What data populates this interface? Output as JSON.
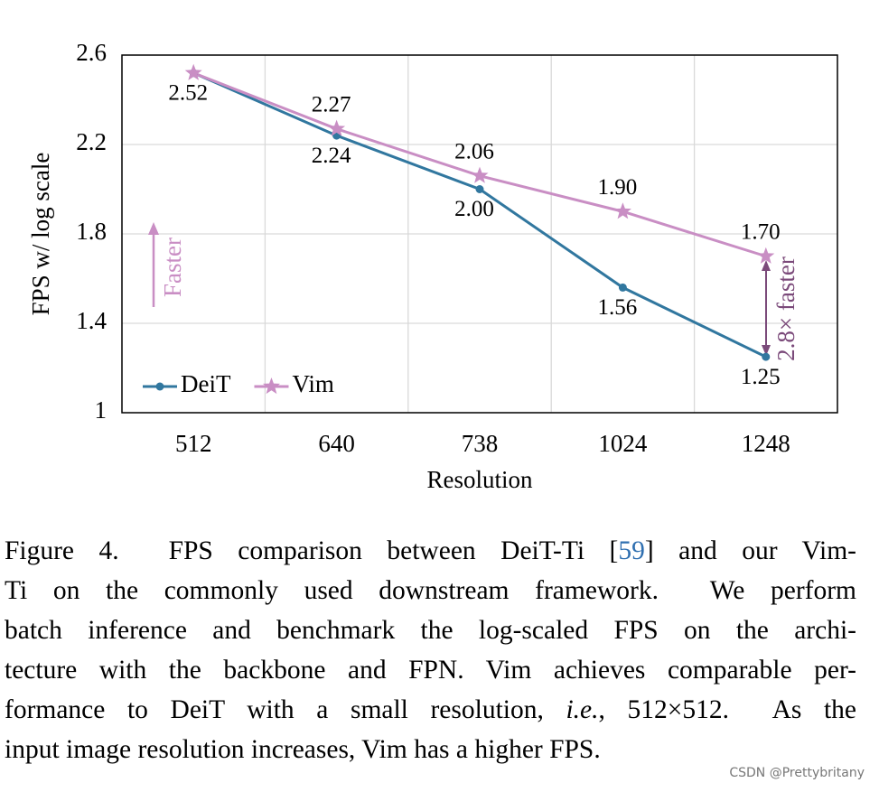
{
  "chart_data": {
    "type": "line",
    "ylabel": "FPS w/ log scale",
    "xlabel": "Resolution",
    "categories": [
      "512",
      "640",
      "738",
      "1024",
      "1248"
    ],
    "series": [
      {
        "name": "DeiT",
        "color": "#31779f",
        "marker": "circle",
        "label_side": "below",
        "values": [
          2.52,
          2.24,
          2.0,
          1.56,
          1.25
        ],
        "value_labels": [
          "2.52",
          "2.24",
          "2.00",
          "1.56",
          "1.25"
        ]
      },
      {
        "name": "Vim",
        "color": "#c98ec4",
        "marker": "star",
        "label_side": "above",
        "values": [
          2.52,
          2.27,
          2.06,
          1.9,
          1.7
        ],
        "value_labels": [
          null,
          "2.27",
          "2.06",
          "1.90",
          "1.70"
        ]
      }
    ],
    "ylim": [
      1,
      2.6
    ],
    "yticks": [
      1,
      1.4,
      1.8,
      2.2,
      2.6
    ],
    "grid": true,
    "legend": "lower left",
    "annotations": [
      {
        "text": "Faster",
        "color": "#c98ec4"
      },
      {
        "text": "2.8× faster",
        "color": "#7b4a7a"
      }
    ]
  },
  "caption": {
    "lines": [
      [
        {
          "text": "Figure 4.  FPS comparison between DeiT-Ti ["
        },
        {
          "text": "59",
          "color": "#2f6fb0"
        },
        {
          "text": "] and our Vim-"
        }
      ],
      [
        {
          "text": "Ti on the commonly used downstream framework.  We perform"
        }
      ],
      [
        {
          "text": "batch inference and benchmark the log-scaled FPS on the archi-"
        }
      ],
      [
        {
          "text": "tecture with the backbone and FPN. Vim achieves comparable per-"
        }
      ],
      [
        {
          "text": "formance to DeiT with a small resolution, "
        },
        {
          "text": "i.e.",
          "italic": true
        },
        {
          "text": ", 512×512.  As the"
        }
      ],
      [
        {
          "text": "input image resolution increases, Vim has a higher FPS."
        }
      ]
    ]
  },
  "watermark": "CSDN @Prettybritany"
}
